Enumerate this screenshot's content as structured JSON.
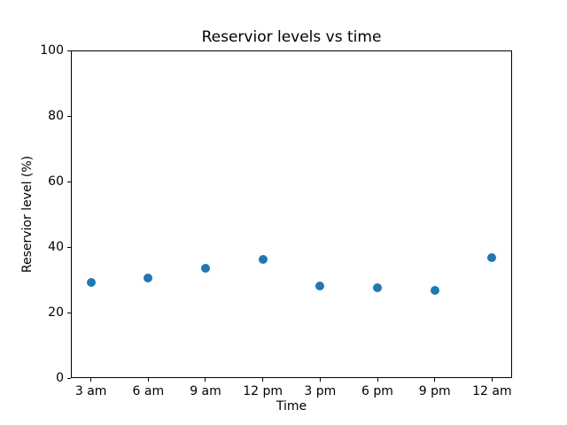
{
  "chart_data": {
    "type": "scatter",
    "title": "Reservior levels vs time",
    "xlabel": "Time",
    "ylabel": "Reservior level (%)",
    "categories": [
      "3 am",
      "6 am",
      "9 am",
      "12 pm",
      "3 pm",
      "6 pm",
      "9 pm",
      "12 am"
    ],
    "x_hours": [
      3,
      6,
      9,
      12,
      15,
      18,
      21,
      24
    ],
    "values": [
      29.3,
      30.5,
      33.6,
      36.3,
      28.1,
      27.7,
      26.8,
      36.7
    ],
    "xlim": [
      1.95,
      25.05
    ],
    "ylim": [
      0,
      100
    ],
    "yticks": [
      0,
      20,
      40,
      60,
      80,
      100
    ],
    "grid": false,
    "legend": "none",
    "marker_color": "#1f77b4",
    "background_color": "#ffffff",
    "spine_color": "#000000"
  }
}
